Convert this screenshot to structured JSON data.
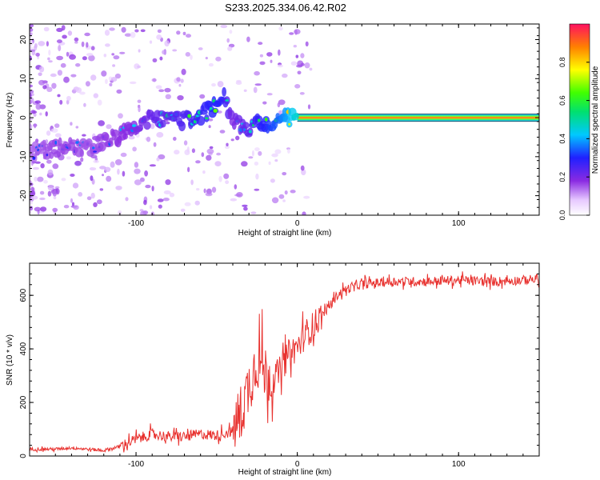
{
  "title": "S233.2025.334.06.42.R02",
  "chart_data": [
    {
      "type": "heatmap",
      "title": "S233.2025.334.06.42.R02",
      "xlabel": "Height of straight line (km)",
      "ylabel": "Frequency (Hz)",
      "xlim": [
        -166,
        150
      ],
      "ylim": [
        -25,
        24
      ],
      "xticks": [
        -100,
        0,
        100
      ],
      "yticks": [
        -20,
        -10,
        0,
        10,
        20
      ],
      "colorbar": {
        "label": "Normalized spectral amplitude",
        "range": [
          0,
          1
        ],
        "ticks": [
          0.0,
          0.2,
          0.4,
          0.6,
          0.8
        ],
        "tick_labels": [
          "0.0",
          "0.2",
          "0.4",
          "0.6",
          "0.8"
        ]
      },
      "ridge": {
        "x": [
          -166,
          -150,
          -140,
          -130,
          -120,
          -110,
          -100,
          -90,
          -80,
          -70,
          -60,
          -50,
          -45,
          -40,
          -35,
          -30,
          -25,
          -20,
          -15,
          -10,
          -5,
          0,
          10,
          50,
          100,
          150
        ],
        "freq": [
          -9,
          -8,
          -7,
          -8,
          -6,
          -5,
          -2,
          0,
          -1,
          -0.5,
          0.5,
          3,
          5,
          -1,
          -1.5,
          -3,
          -1.5,
          -1.5,
          -1,
          -0.5,
          0,
          0,
          0,
          0,
          0,
          0
        ],
        "amplitude": [
          0.25,
          0.3,
          0.3,
          0.28,
          0.3,
          0.32,
          0.35,
          0.4,
          0.42,
          0.45,
          0.5,
          0.55,
          0.5,
          0.35,
          0.4,
          0.42,
          0.5,
          0.55,
          0.6,
          0.65,
          0.75,
          0.85,
          0.95,
          0.98,
          1.0,
          0.98
        ]
      }
    },
    {
      "type": "line",
      "title": "",
      "xlabel": "Height of straight line (km)",
      "ylabel": "SNR (10 * v/v)",
      "xlim": [
        -166,
        150
      ],
      "ylim": [
        0,
        720
      ],
      "xticks": [
        -100,
        0,
        100
      ],
      "yticks": [
        0,
        200,
        400,
        600
      ],
      "series": [
        {
          "name": "SNR",
          "color": "#e8322f",
          "x": [
            -166,
            -150,
            -140,
            -130,
            -120,
            -110,
            -100,
            -90,
            -80,
            -70,
            -60,
            -50,
            -40,
            -35,
            -30,
            -25,
            -20,
            -15,
            -10,
            -5,
            0,
            5,
            10,
            15,
            20,
            25,
            30,
            40,
            50,
            60,
            80,
            100,
            120,
            140,
            150
          ],
          "values": [
            25,
            25,
            30,
            25,
            20,
            35,
            60,
            80,
            70,
            70,
            80,
            75,
            90,
            150,
            250,
            350,
            300,
            280,
            320,
            380,
            400,
            450,
            480,
            520,
            560,
            600,
            620,
            640,
            645,
            650,
            650,
            655,
            650,
            655,
            660
          ]
        }
      ]
    }
  ]
}
